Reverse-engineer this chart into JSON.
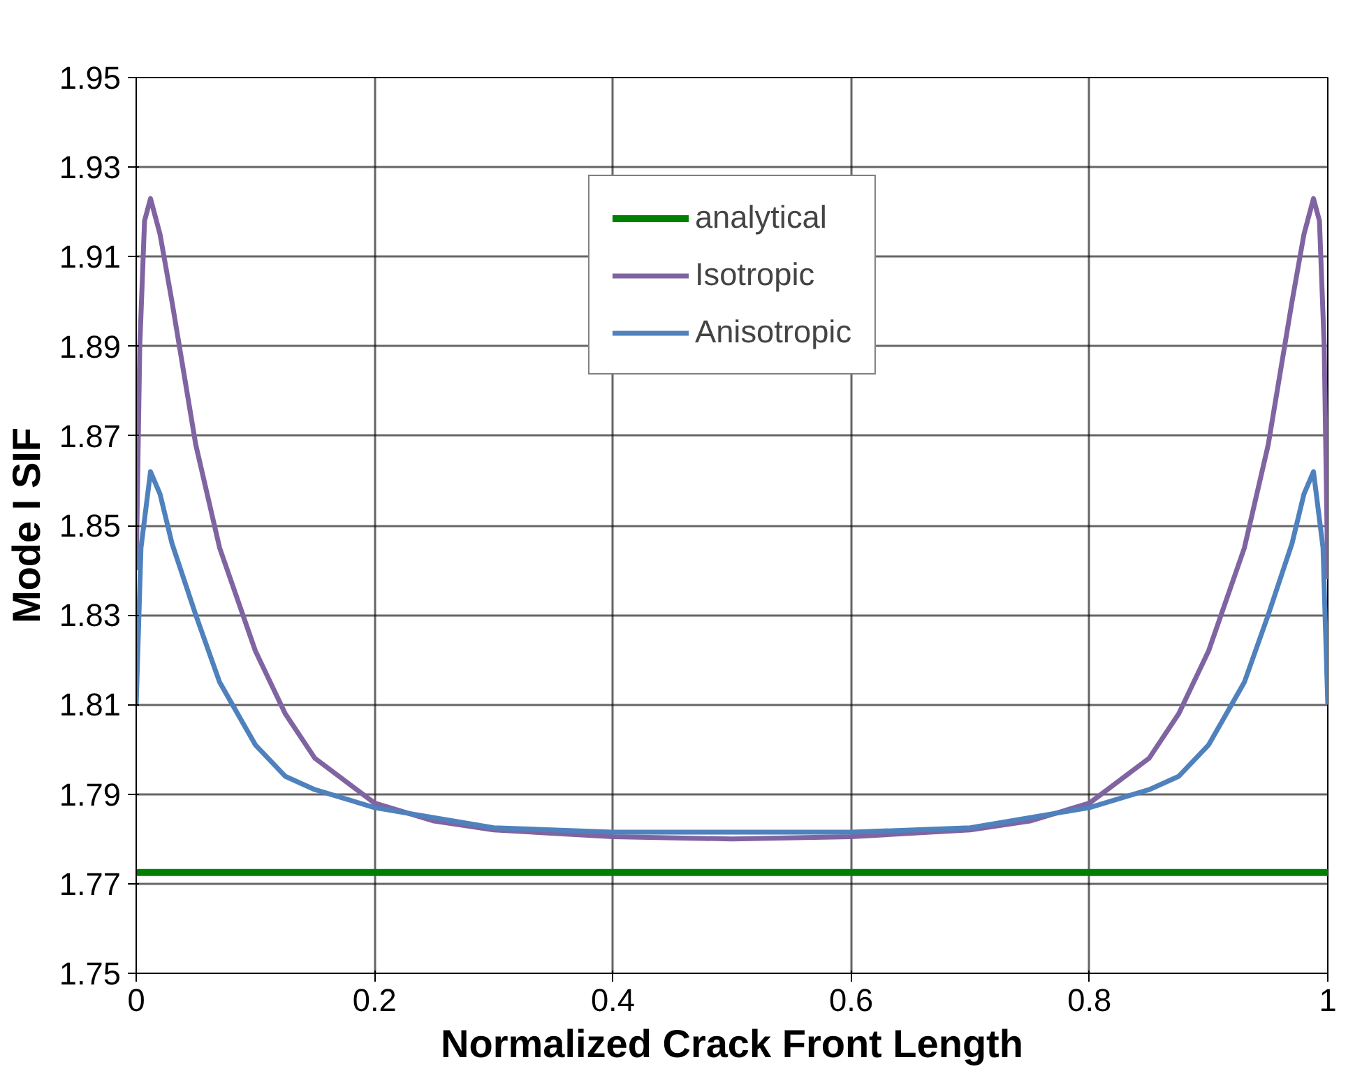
{
  "chart_data": {
    "type": "line",
    "xlabel": "Normalized Crack Front Length",
    "ylabel": "Mode I SIF",
    "xlim": [
      0,
      1
    ],
    "xticks": [
      0,
      0.2,
      0.4,
      0.6,
      0.8,
      1
    ],
    "ylim": [
      1.75,
      1.95
    ],
    "yticks": [
      1.75,
      1.77,
      1.79,
      1.81,
      1.83,
      1.85,
      1.87,
      1.89,
      1.91,
      1.93,
      1.95
    ],
    "grid": true,
    "legend": "top",
    "line_style": "solid",
    "marker": "none",
    "series": [
      {
        "name": "analytical",
        "color": "#008000",
        "x": [
          0,
          1
        ],
        "values": [
          1.7725,
          1.7725
        ]
      },
      {
        "name": "Isotropic",
        "color": "#8064a2",
        "x": [
          0,
          0.003,
          0.007,
          0.012,
          0.02,
          0.03,
          0.04,
          0.05,
          0.07,
          0.1,
          0.125,
          0.15,
          0.2,
          0.25,
          0.3,
          0.4,
          0.5,
          0.6,
          0.7,
          0.75,
          0.8,
          0.85,
          0.875,
          0.9,
          0.93,
          0.95,
          0.96,
          0.97,
          0.98,
          0.988,
          0.993,
          0.997,
          1
        ],
        "values": [
          1.84,
          1.89,
          1.918,
          1.923,
          1.915,
          1.9,
          1.884,
          1.868,
          1.845,
          1.822,
          1.808,
          1.798,
          1.788,
          1.784,
          1.782,
          1.7805,
          1.78,
          1.7805,
          1.782,
          1.784,
          1.788,
          1.798,
          1.808,
          1.822,
          1.845,
          1.868,
          1.884,
          1.9,
          1.915,
          1.923,
          1.918,
          1.89,
          1.838
        ]
      },
      {
        "name": "Anisotropic",
        "color": "#4f81bd",
        "x": [
          0,
          0.004,
          0.012,
          0.02,
          0.03,
          0.05,
          0.07,
          0.1,
          0.125,
          0.15,
          0.2,
          0.3,
          0.4,
          0.5,
          0.6,
          0.7,
          0.8,
          0.85,
          0.875,
          0.9,
          0.93,
          0.95,
          0.97,
          0.98,
          0.988,
          0.996,
          1
        ],
        "values": [
          1.81,
          1.845,
          1.862,
          1.857,
          1.846,
          1.83,
          1.815,
          1.801,
          1.794,
          1.791,
          1.787,
          1.7825,
          1.7815,
          1.7815,
          1.7815,
          1.7825,
          1.787,
          1.791,
          1.794,
          1.801,
          1.815,
          1.83,
          1.846,
          1.857,
          1.862,
          1.845,
          1.81
        ]
      }
    ]
  }
}
